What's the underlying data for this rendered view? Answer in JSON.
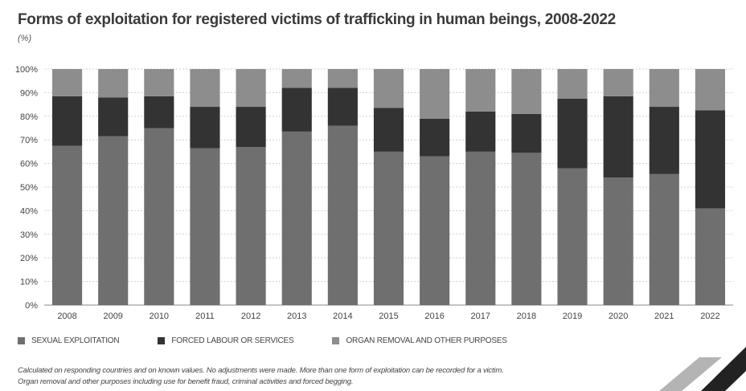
{
  "header": {
    "title": "Forms of exploitation for registered victims of trafficking in human beings, 2008-2022",
    "unit": "(%)"
  },
  "legend": {
    "items": [
      {
        "label": "SEXUAL EXPLOITATION",
        "color": "#6f6f6f"
      },
      {
        "label": "FORCED LABOUR OR SERVICES",
        "color": "#333333"
      },
      {
        "label": "ORGAN REMOVAL AND OTHER PURPOSES",
        "color": "#8d8d8d"
      }
    ]
  },
  "notes": {
    "line1": "Calculated on responding countries and on known values. No adjustments were made. More than one form of exploitation can be recorded for a victim.",
    "line2": "Organ removal and other purposes including use for benefit fraud, criminal activities and forced begging."
  },
  "chart_data": {
    "type": "bar",
    "stacked": true,
    "title": "Forms of exploitation for registered victims of trafficking in human beings, 2008-2022",
    "subtitle": "(%)",
    "categories": [
      "2008",
      "2009",
      "2010",
      "2011",
      "2012",
      "2013",
      "2014",
      "2015",
      "2016",
      "2017",
      "2018",
      "2019",
      "2020",
      "2021",
      "2022"
    ],
    "series": [
      {
        "name": "SEXUAL EXPLOITATION",
        "color": "#6f6f6f",
        "values": [
          67.5,
          71.5,
          75,
          66.5,
          67,
          73.5,
          76,
          65,
          63,
          65,
          64.5,
          58,
          54,
          55.5,
          41
        ]
      },
      {
        "name": "FORCED LABOUR OR SERVICES",
        "color": "#333333",
        "values": [
          21,
          16.5,
          13.5,
          17.5,
          17,
          18.5,
          16,
          18.5,
          16,
          17,
          16.5,
          29.5,
          34.5,
          28.5,
          41.5
        ]
      },
      {
        "name": "ORGAN REMOVAL AND OTHER PURPOSES",
        "color": "#8d8d8d",
        "values": [
          11.5,
          12,
          11.5,
          16,
          16,
          8,
          8,
          16.5,
          21,
          18,
          19,
          12.5,
          11.5,
          16,
          17.5
        ]
      }
    ],
    "ylim": [
      0,
      100
    ],
    "yticks": [
      "0%",
      "10%",
      "20%",
      "30%",
      "40%",
      "50%",
      "60%",
      "70%",
      "80%",
      "90%",
      "100%"
    ],
    "grid": true,
    "legend_position": "bottom"
  }
}
